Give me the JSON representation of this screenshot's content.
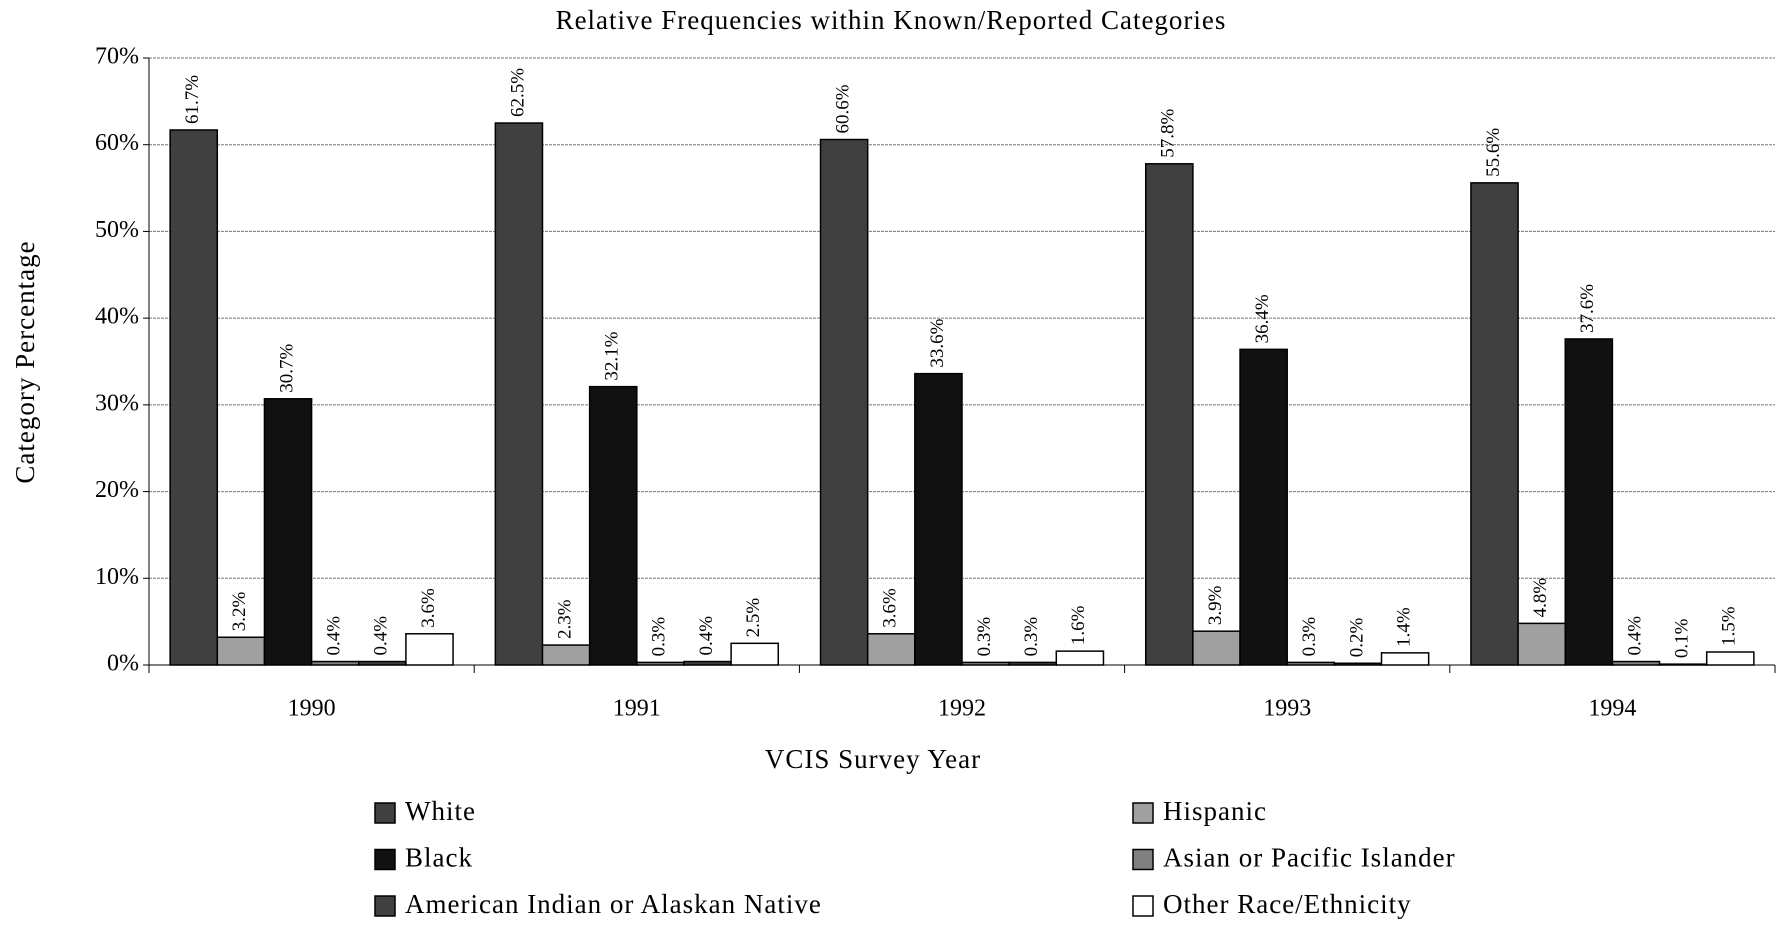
{
  "chart_data": {
    "type": "bar",
    "title": "Relative Frequencies within Known/Reported Categories",
    "x_label": "VCIS Survey Year",
    "y_label": "Category Percentage",
    "categories": [
      "1990",
      "1991",
      "1992",
      "1993",
      "1994"
    ],
    "series": [
      {
        "name": "White",
        "color": "#404040",
        "values": [
          61.7,
          62.5,
          60.6,
          57.8,
          55.6
        ],
        "value_labels": [
          "61.7%",
          "62.5%",
          "60.6%",
          "57.8%",
          "55.6%"
        ]
      },
      {
        "name": "Hispanic",
        "color": "#a0a0a0",
        "values": [
          3.2,
          2.3,
          3.6,
          3.9,
          4.8
        ],
        "value_labels": [
          "3.2%",
          "2.3%",
          "3.6%",
          "3.9%",
          "4.8%"
        ]
      },
      {
        "name": "Black",
        "color": "#111111",
        "values": [
          30.7,
          32.1,
          33.6,
          36.4,
          37.6
        ],
        "value_labels": [
          "30.7%",
          "32.1%",
          "33.6%",
          "36.4%",
          "37.6%"
        ]
      },
      {
        "name": "Asian or Pacific Islander",
        "color": "#808080",
        "values": [
          0.4,
          0.3,
          0.3,
          0.3,
          0.4
        ],
        "value_labels": [
          "0.4%",
          "0.3%",
          "0.3%",
          "0.3%",
          "0.4%"
        ]
      },
      {
        "name": "American Indian or Alaskan Native",
        "color": "#404040",
        "values": [
          0.4,
          0.4,
          0.3,
          0.2,
          0.1
        ],
        "value_labels": [
          "0.4%",
          "0.4%",
          "0.3%",
          "0.2%",
          "0.1%"
        ]
      },
      {
        "name": "Other Race/Ethnicity",
        "color": "#ffffff",
        "values": [
          3.6,
          2.5,
          1.6,
          1.4,
          1.5
        ],
        "value_labels": [
          "3.6%",
          "2.5%",
          "1.6%",
          "1.4%",
          "1.5%"
        ]
      }
    ],
    "ylim": [
      0,
      70
    ],
    "yticks": [
      {
        "value": 0,
        "label": "0%"
      },
      {
        "value": 10,
        "label": "10%"
      },
      {
        "value": 20,
        "label": "20%"
      },
      {
        "value": 30,
        "label": "30%"
      },
      {
        "value": 40,
        "label": "40%"
      },
      {
        "value": 50,
        "label": "50%"
      },
      {
        "value": 60,
        "label": "60%"
      },
      {
        "value": 70,
        "label": "70%"
      }
    ],
    "grid": true
  }
}
